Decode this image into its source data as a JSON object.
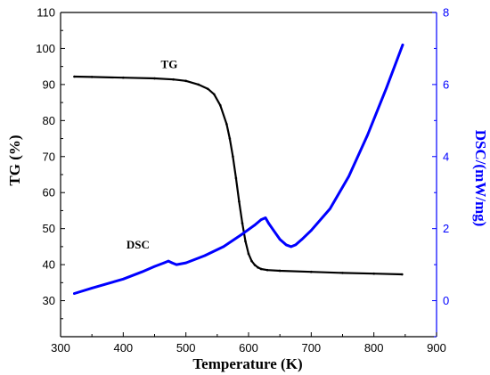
{
  "chart_data": {
    "type": "line",
    "title": "",
    "xlabel": "Temperature (K)",
    "ylabel": "TG (%)",
    "y2label": "DSC/(mW/mg)",
    "xlim": [
      300,
      900
    ],
    "ylim": [
      20,
      110
    ],
    "y2lim": [
      -1,
      8
    ],
    "xticks": [
      "300",
      "400",
      "500",
      "600",
      "700",
      "800",
      "900"
    ],
    "yticks": [
      "30",
      "40",
      "50",
      "60",
      "70",
      "80",
      "90",
      "100",
      "110"
    ],
    "y2ticks": [
      "0",
      "2",
      "4",
      "6",
      "8"
    ],
    "grid": false,
    "legend": "none",
    "colors": {
      "TG": "#000000",
      "DSC": "#0000ff",
      "axis_left": "#000000",
      "axis_right": "#0000ff"
    },
    "series": [
      {
        "name": "TG",
        "axis": "left",
        "x": [
          322,
          350,
          400,
          450,
          480,
          500,
          520,
          535,
          545,
          555,
          565,
          570,
          575,
          580,
          585,
          590,
          595,
          600,
          605,
          610,
          615,
          620,
          630,
          650,
          700,
          750,
          800,
          845
        ],
        "y": [
          92.2,
          92.1,
          91.9,
          91.7,
          91.4,
          91.0,
          90.0,
          88.8,
          87.3,
          84.2,
          79.0,
          75.0,
          70.0,
          64.0,
          57.5,
          51.5,
          46.5,
          43.0,
          41.0,
          39.9,
          39.2,
          38.8,
          38.5,
          38.3,
          38.0,
          37.7,
          37.5,
          37.3
        ]
      },
      {
        "name": "DSC",
        "axis": "right",
        "x": [
          322,
          350,
          400,
          430,
          450,
          465,
          472,
          478,
          485,
          500,
          530,
          560,
          590,
          610,
          620,
          627,
          632,
          640,
          650,
          660,
          668,
          675,
          685,
          700,
          730,
          760,
          790,
          820,
          846
        ],
        "y": [
          0.2,
          0.35,
          0.6,
          0.8,
          0.95,
          1.05,
          1.1,
          1.05,
          1.0,
          1.05,
          1.25,
          1.5,
          1.85,
          2.1,
          2.25,
          2.3,
          2.15,
          1.95,
          1.7,
          1.55,
          1.5,
          1.55,
          1.7,
          1.95,
          2.55,
          3.45,
          4.6,
          5.9,
          7.1
        ]
      }
    ],
    "annotations": [
      {
        "text": "TG",
        "x": 460,
        "y": 94.5,
        "axis": "left"
      },
      {
        "text": "DSC",
        "x": 405,
        "y": 44.5,
        "axis": "left"
      }
    ]
  }
}
